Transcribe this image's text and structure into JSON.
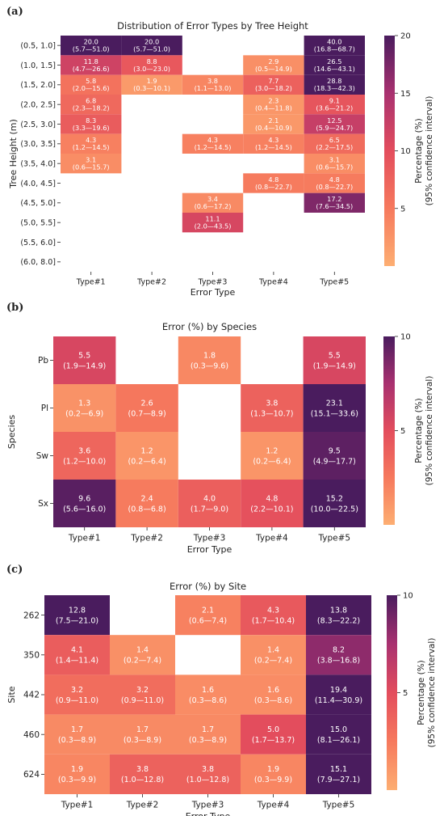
{
  "chart_data": [
    {
      "type": "heatmap",
      "panel_label": "(a)",
      "title": "Distribution of Error Types by Tree Height",
      "xlabel": "Error Type",
      "ylabel": "Tree Height (m)",
      "categories_x": [
        "Type#1",
        "Type#2",
        "Type#3",
        "Type#4",
        "Type#5"
      ],
      "categories_y": [
        "(0.5, 1.0]",
        "(1.0, 1.5]",
        "(1.5, 2.0]",
        "(2.0, 2.5]",
        "(2.5, 3.0]",
        "(3.0, 3.5]",
        "(3.5, 4.0]",
        "(4.0, 4.5]",
        "(4.5, 5.0]",
        "(5.0, 5.5]",
        "(5.5, 6.0]",
        "(6.0, 8.0]"
      ],
      "colorbar_label": [
        "Percentage (%)",
        "(95% confidence interval)"
      ],
      "colorbar_range": [
        0,
        20
      ],
      "colorbar_ticks": [
        5,
        10,
        15,
        20
      ],
      "cells": [
        {
          "row": 0,
          "col": 0,
          "value": 20.0,
          "ci": "(5.7—51.0)"
        },
        {
          "row": 0,
          "col": 1,
          "value": 20.0,
          "ci": "(5.7—51.0)"
        },
        {
          "row": 0,
          "col": 4,
          "value": 40.0,
          "ci": "(16.8—68.7)"
        },
        {
          "row": 1,
          "col": 0,
          "value": 11.8,
          "ci": "(4.7—26.6)"
        },
        {
          "row": 1,
          "col": 1,
          "value": 8.8,
          "ci": "(3.0—23.0)"
        },
        {
          "row": 1,
          "col": 3,
          "value": 2.9,
          "ci": "(0.5—14.9)"
        },
        {
          "row": 1,
          "col": 4,
          "value": 26.5,
          "ci": "(14.6—43.1)"
        },
        {
          "row": 2,
          "col": 0,
          "value": 5.8,
          "ci": "(2.0—15.6)"
        },
        {
          "row": 2,
          "col": 1,
          "value": 1.9,
          "ci": "(0.3—10.1)"
        },
        {
          "row": 2,
          "col": 2,
          "value": 3.8,
          "ci": "(1.1—13.0)"
        },
        {
          "row": 2,
          "col": 3,
          "value": 7.7,
          "ci": "(3.0—18.2)"
        },
        {
          "row": 2,
          "col": 4,
          "value": 28.8,
          "ci": "(18.3—42.3)"
        },
        {
          "row": 3,
          "col": 0,
          "value": 6.8,
          "ci": "(2.3—18.2)"
        },
        {
          "row": 3,
          "col": 3,
          "value": 2.3,
          "ci": "(0.4—11.8)"
        },
        {
          "row": 3,
          "col": 4,
          "value": 9.1,
          "ci": "(3.6—21.2)"
        },
        {
          "row": 4,
          "col": 0,
          "value": 8.3,
          "ci": "(3.3—19.6)"
        },
        {
          "row": 4,
          "col": 3,
          "value": 2.1,
          "ci": "(0.4—10.9)"
        },
        {
          "row": 4,
          "col": 4,
          "value": 12.5,
          "ci": "(5.9—24.7)"
        },
        {
          "row": 5,
          "col": 0,
          "value": 4.3,
          "ci": "(1.2—14.5)"
        },
        {
          "row": 5,
          "col": 2,
          "value": 4.3,
          "ci": "(1.2—14.5)"
        },
        {
          "row": 5,
          "col": 3,
          "value": 4.3,
          "ci": "(1.2—14.5)"
        },
        {
          "row": 5,
          "col": 4,
          "value": 6.5,
          "ci": "(2.2—17.5)"
        },
        {
          "row": 6,
          "col": 0,
          "value": 3.1,
          "ci": "(0.6—15.7)"
        },
        {
          "row": 6,
          "col": 4,
          "value": 3.1,
          "ci": "(0.6—15.7)"
        },
        {
          "row": 7,
          "col": 3,
          "value": 4.8,
          "ci": "(0.8—22.7)"
        },
        {
          "row": 7,
          "col": 4,
          "value": 4.8,
          "ci": "(0.8—22.7)"
        },
        {
          "row": 8,
          "col": 2,
          "value": 3.4,
          "ci": "(0.6—17.2)"
        },
        {
          "row": 8,
          "col": 4,
          "value": 17.2,
          "ci": "(7.6—34.5)"
        },
        {
          "row": 9,
          "col": 2,
          "value": 11.1,
          "ci": "(2.0—43.5)"
        }
      ]
    },
    {
      "type": "heatmap",
      "panel_label": "(b)",
      "title": "Error (%) by Species",
      "xlabel": "Error Type",
      "ylabel": "Species",
      "categories_x": [
        "Type#1",
        "Type#2",
        "Type#3",
        "Type#4",
        "Type#5"
      ],
      "categories_y": [
        "Pb",
        "Pl",
        "Sw",
        "Sx"
      ],
      "colorbar_label": [
        "Percentage (%)",
        "(95% confidence interval)"
      ],
      "colorbar_range": [
        0,
        10
      ],
      "colorbar_ticks": [
        5,
        10
      ],
      "cells": [
        {
          "row": 0,
          "col": 0,
          "value": 5.5,
          "ci": "(1.9—14.9)"
        },
        {
          "row": 0,
          "col": 2,
          "value": 1.8,
          "ci": "(0.3—9.6)"
        },
        {
          "row": 0,
          "col": 4,
          "value": 5.5,
          "ci": "(1.9—14.9)"
        },
        {
          "row": 1,
          "col": 0,
          "value": 1.3,
          "ci": "(0.2—6.9)"
        },
        {
          "row": 1,
          "col": 1,
          "value": 2.6,
          "ci": "(0.7—8.9)"
        },
        {
          "row": 1,
          "col": 3,
          "value": 3.8,
          "ci": "(1.3—10.7)"
        },
        {
          "row": 1,
          "col": 4,
          "value": 23.1,
          "ci": "(15.1—33.6)"
        },
        {
          "row": 2,
          "col": 0,
          "value": 3.6,
          "ci": "(1.2—10.0)"
        },
        {
          "row": 2,
          "col": 1,
          "value": 1.2,
          "ci": "(0.2—6.4)"
        },
        {
          "row": 2,
          "col": 3,
          "value": 1.2,
          "ci": "(0.2—6.4)"
        },
        {
          "row": 2,
          "col": 4,
          "value": 9.5,
          "ci": "(4.9—17.7)"
        },
        {
          "row": 3,
          "col": 0,
          "value": 9.6,
          "ci": "(5.6—16.0)"
        },
        {
          "row": 3,
          "col": 1,
          "value": 2.4,
          "ci": "(0.8—6.8)"
        },
        {
          "row": 3,
          "col": 2,
          "value": 4.0,
          "ci": "(1.7—9.0)"
        },
        {
          "row": 3,
          "col": 3,
          "value": 4.8,
          "ci": "(2.2—10.1)"
        },
        {
          "row": 3,
          "col": 4,
          "value": 15.2,
          "ci": "(10.0—22.5)"
        }
      ]
    },
    {
      "type": "heatmap",
      "panel_label": "(c)",
      "title": "Error (%) by Site",
      "xlabel": "Error Type",
      "ylabel": "Site",
      "categories_x": [
        "Type#1",
        "Type#2",
        "Type#3",
        "Type#4",
        "Type#5"
      ],
      "categories_y": [
        "262",
        "350",
        "442",
        "460",
        "624"
      ],
      "colorbar_label": [
        "Percentage (%)",
        "(95% confidence interval)"
      ],
      "colorbar_range": [
        0,
        10
      ],
      "colorbar_ticks": [
        5,
        10
      ],
      "cells": [
        {
          "row": 0,
          "col": 0,
          "value": 12.8,
          "ci": "(7.5—21.0)"
        },
        {
          "row": 0,
          "col": 2,
          "value": 2.1,
          "ci": "(0.6—7.4)"
        },
        {
          "row": 0,
          "col": 3,
          "value": 4.3,
          "ci": "(1.7—10.4)"
        },
        {
          "row": 0,
          "col": 4,
          "value": 13.8,
          "ci": "(8.3—22.2)"
        },
        {
          "row": 1,
          "col": 0,
          "value": 4.1,
          "ci": "(1.4—11.4)"
        },
        {
          "row": 1,
          "col": 1,
          "value": 1.4,
          "ci": "(0.2—7.4)"
        },
        {
          "row": 1,
          "col": 3,
          "value": 1.4,
          "ci": "(0.2—7.4)"
        },
        {
          "row": 1,
          "col": 4,
          "value": 8.2,
          "ci": "(3.8—16.8)"
        },
        {
          "row": 2,
          "col": 0,
          "value": 3.2,
          "ci": "(0.9—11.0)"
        },
        {
          "row": 2,
          "col": 1,
          "value": 3.2,
          "ci": "(0.9—11.0)"
        },
        {
          "row": 2,
          "col": 2,
          "value": 1.6,
          "ci": "(0.3—8.6)"
        },
        {
          "row": 2,
          "col": 3,
          "value": 1.6,
          "ci": "(0.3—8.6)"
        },
        {
          "row": 2,
          "col": 4,
          "value": 19.4,
          "ci": "(11.4—30.9)"
        },
        {
          "row": 3,
          "col": 0,
          "value": 1.7,
          "ci": "(0.3—8.9)"
        },
        {
          "row": 3,
          "col": 1,
          "value": 1.7,
          "ci": "(0.3—8.9)"
        },
        {
          "row": 3,
          "col": 2,
          "value": 1.7,
          "ci": "(0.3—8.9)"
        },
        {
          "row": 3,
          "col": 3,
          "value": 5.0,
          "ci": "(1.7—13.7)"
        },
        {
          "row": 3,
          "col": 4,
          "value": 15.0,
          "ci": "(8.1—26.1)"
        },
        {
          "row": 4,
          "col": 0,
          "value": 1.9,
          "ci": "(0.3—9.9)"
        },
        {
          "row": 4,
          "col": 1,
          "value": 3.8,
          "ci": "(1.0—12.8)"
        },
        {
          "row": 4,
          "col": 2,
          "value": 3.8,
          "ci": "(1.0—12.8)"
        },
        {
          "row": 4,
          "col": 3,
          "value": 1.9,
          "ci": "(0.3—9.9)"
        },
        {
          "row": 4,
          "col": 4,
          "value": 15.1,
          "ci": "(7.9—27.1)"
        }
      ]
    }
  ]
}
